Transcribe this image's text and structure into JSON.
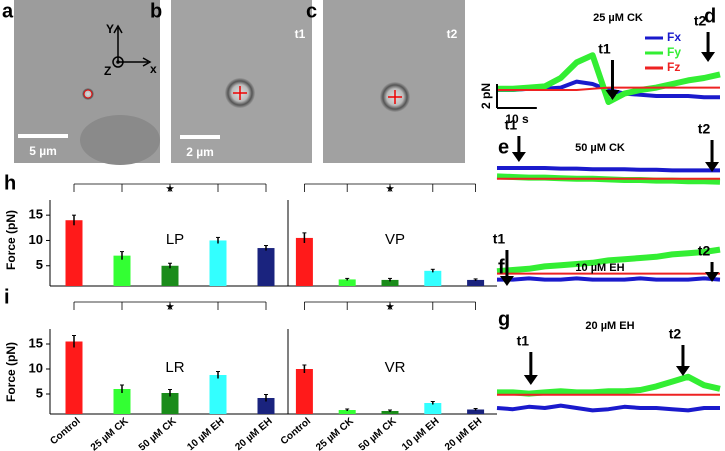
{
  "micrographs": [
    {
      "panel_label": "a",
      "axis_labels": [
        "Y",
        "x",
        "Z"
      ],
      "scale_bar": "5 µm"
    },
    {
      "panel_label": "b",
      "time": "t1",
      "scale_bar": "2 µm"
    },
    {
      "panel_label": "c",
      "time": "t2"
    }
  ],
  "chart_data": [
    {
      "type": "bar",
      "panel_label": "h",
      "ylabel": "Force (pN)",
      "ylim": [
        1,
        18
      ],
      "yticks": [
        5,
        10,
        15
      ],
      "colors": [
        "#ff1a1a",
        "#33ff33",
        "#1a8c1a",
        "#33ffff",
        "#1a237e"
      ],
      "significance": "★",
      "groups": [
        {
          "name": "LP",
          "values": [
            14,
            7,
            5,
            10,
            8.5
          ],
          "errors": [
            1,
            0.8,
            0.5,
            0.6,
            0.5
          ]
        },
        {
          "name": "VP",
          "values": [
            10.5,
            2.3,
            2.2,
            4,
            2.2
          ],
          "errors": [
            1,
            0.2,
            0.3,
            0.3,
            0.2
          ]
        }
      ]
    },
    {
      "type": "bar",
      "panel_label": "i",
      "ylabel": "Force (pN)",
      "ylim": [
        1,
        18
      ],
      "yticks": [
        5,
        10,
        15
      ],
      "colors": [
        "#ff1a1a",
        "#33ff33",
        "#1a8c1a",
        "#33ffff",
        "#1a237e"
      ],
      "significance": "★",
      "categories": [
        "Control",
        "25 µM CK",
        "50 µM CK",
        "10 µM EH",
        "20 µM EH"
      ],
      "groups": [
        {
          "name": "LR",
          "values": [
            15.5,
            6,
            5.2,
            8.8,
            4.2
          ],
          "errors": [
            1.2,
            0.8,
            0.7,
            0.7,
            0.7
          ]
        },
        {
          "name": "VR",
          "values": [
            10,
            1.8,
            1.6,
            3.2,
            1.9
          ],
          "errors": [
            0.8,
            0.2,
            0.2,
            0.3,
            0.2
          ]
        }
      ]
    },
    {
      "type": "line",
      "panel_label": "d",
      "title": "25 µM CK",
      "x": [
        0,
        4,
        8,
        12,
        16,
        20,
        24,
        28,
        32,
        36,
        40,
        44,
        48,
        52,
        56
      ],
      "xlim": [
        0,
        56
      ],
      "ylim": [
        -2,
        4
      ],
      "series": [
        {
          "name": "Fx",
          "color": "#1a1acc",
          "values": [
            -0.5,
            -0.5,
            -0.4,
            -0.4,
            -0.3,
            0.2,
            0,
            -0.5,
            -0.8,
            -0.9,
            -1,
            -1,
            -1,
            -1.1,
            -1.1
          ]
        },
        {
          "name": "Fy",
          "color": "#33ee33",
          "values": [
            -0.4,
            -0.4,
            -0.3,
            -0.2,
            0.5,
            1.8,
            2.4,
            -1.5,
            -0.8,
            -0.5,
            -0.3,
            0,
            0.3,
            0.5,
            0.8
          ]
        },
        {
          "name": "Fz",
          "color": "#ee2222",
          "values": [
            -0.5,
            -0.5,
            -0.5,
            -0.5,
            -0.5,
            -0.5,
            -0.4,
            -0.3,
            -0.3,
            -0.3,
            -0.3,
            -0.3,
            -0.3,
            -0.3,
            -0.3
          ]
        }
      ],
      "annotations": [
        {
          "text": "t1",
          "x": 29
        },
        {
          "text": "t2",
          "x": 53
        }
      ],
      "scale_bar": {
        "x_length": 10,
        "x_label": "10 s",
        "y_length": 2,
        "y_label": "2 pN"
      }
    },
    {
      "type": "line",
      "panel_label": "e",
      "title": "50 µM CK",
      "x": [
        0,
        4,
        8,
        12,
        16,
        20,
        24,
        28,
        32,
        36,
        40,
        44,
        48,
        52,
        56
      ],
      "xlim": [
        0,
        56
      ],
      "ylim": [
        -2,
        2
      ],
      "series": [
        {
          "color": "#1a1acc",
          "values": [
            0.5,
            0.5,
            0.5,
            0.5,
            0.45,
            0.45,
            0.4,
            0.4,
            0.4,
            0.35,
            0.35,
            0.3,
            0.3,
            0.3,
            0.3
          ]
        },
        {
          "color": "#33ee33",
          "values": [
            -0.2,
            -0.25,
            -0.3,
            -0.3,
            -0.35,
            -0.4,
            -0.4,
            -0.45,
            -0.5,
            -0.5,
            -0.55,
            -0.55,
            -0.6,
            -0.6,
            -0.65
          ]
        },
        {
          "color": "#ee2222",
          "values": [
            -0.4,
            -0.4,
            -0.4,
            -0.4,
            -0.4,
            -0.4,
            -0.4,
            -0.4,
            -0.4,
            -0.4,
            -0.4,
            -0.4,
            -0.4,
            -0.4,
            -0.4
          ]
        }
      ],
      "annotations": [
        {
          "text": "t1",
          "x": 5.5
        },
        {
          "text": "t2",
          "x": 54
        }
      ]
    },
    {
      "type": "line",
      "panel_label": "f",
      "title": "10 µM EH",
      "x": [
        0,
        4,
        8,
        12,
        16,
        20,
        24,
        28,
        32,
        36,
        40,
        44,
        48,
        52,
        56
      ],
      "xlim": [
        0,
        56
      ],
      "ylim": [
        -3,
        2
      ],
      "series": [
        {
          "color": "#1a1acc",
          "values": [
            -1.3,
            -1.3,
            -1.2,
            -1.3,
            -1.3,
            -1.2,
            -1.3,
            -1.3,
            -1.3,
            -1.2,
            -1.3,
            -1.3,
            -1.3,
            -1.2,
            -1.3
          ]
        },
        {
          "color": "#33ee33",
          "values": [
            -0.6,
            -0.5,
            -0.4,
            -0.2,
            -0.1,
            0,
            0.1,
            0.3,
            0.4,
            0.5,
            0.6,
            0.8,
            0.9,
            1,
            1.2
          ]
        },
        {
          "color": "#ee2222",
          "values": [
            -0.8,
            -0.8,
            -0.8,
            -0.8,
            -0.8,
            -0.8,
            -0.8,
            -0.8,
            -0.8,
            -0.8,
            -0.8,
            -0.8,
            -0.8,
            -0.8,
            -0.8
          ]
        }
      ],
      "annotations": [
        {
          "text": "t1",
          "x": 2.5
        },
        {
          "text": "t2",
          "x": 54
        }
      ]
    },
    {
      "type": "line",
      "panel_label": "g",
      "title": "20 µM EH",
      "x": [
        0,
        4,
        8,
        12,
        16,
        20,
        24,
        28,
        32,
        36,
        40,
        44,
        48,
        52,
        56
      ],
      "xlim": [
        0,
        56
      ],
      "ylim": [
        -3,
        3
      ],
      "series": [
        {
          "color": "#1a1acc",
          "values": [
            -1,
            -1.1,
            -0.9,
            -1,
            -0.8,
            -1,
            -1.2,
            -1.1,
            -0.9,
            -1,
            -1,
            -1.1,
            -1.2,
            -1,
            -1
          ]
        },
        {
          "color": "#33ee33",
          "values": [
            0.3,
            0.3,
            0.2,
            0.3,
            0.4,
            0.3,
            0.3,
            0.4,
            0.4,
            0.5,
            0.8,
            1.2,
            1.6,
            0.9,
            0.6
          ]
        },
        {
          "color": "#ee2222",
          "values": [
            0.1,
            0.1,
            0.1,
            0.1,
            0.1,
            0.1,
            0.1,
            0.1,
            0.1,
            0.1,
            0.1,
            0.1,
            0.1,
            0.1,
            0.1
          ]
        }
      ],
      "annotations": [
        {
          "text": "t1",
          "x": 8.5
        },
        {
          "text": "t2",
          "x": 46.7
        }
      ]
    }
  ]
}
